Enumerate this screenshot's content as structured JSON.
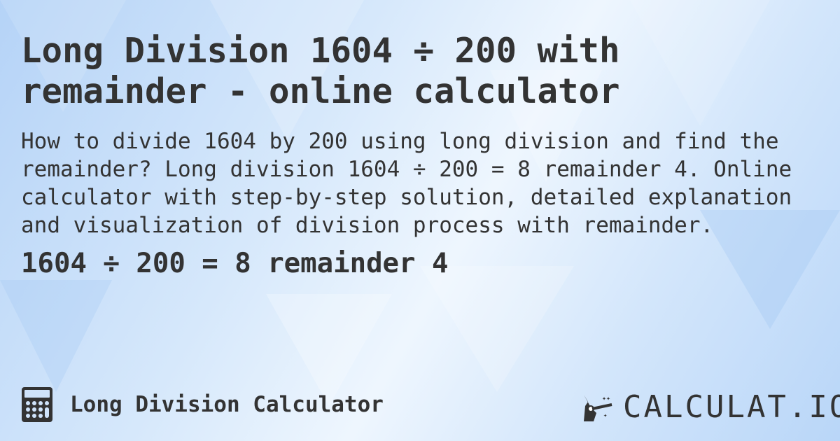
{
  "title": "Long Division 1604 ÷ 200 with remainder - online calculator",
  "description": "How to divide 1604 by 200 using long division and find the remainder? Long division 1604 ÷ 200 = 8 remainder 4. Online calculator with step-by-step solution, detailed explanation and visualization of division process with remainder.",
  "result": "1604 ÷ 200 = 8 remainder 4",
  "footer": {
    "icon": "calculator-icon",
    "label": "Long Division Calculator"
  },
  "logo": {
    "text": "CALCULAT.IO",
    "icon": "magic-hand-icon"
  },
  "colors": {
    "text": "#333333",
    "background": "#d6e8fb"
  }
}
